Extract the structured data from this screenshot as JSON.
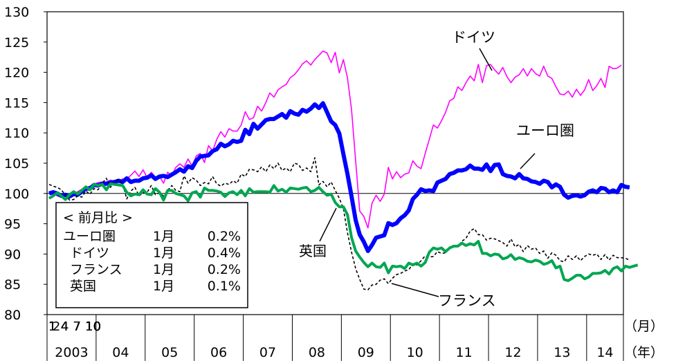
{
  "chart_data": {
    "type": "line",
    "title": "",
    "ylim": [
      80,
      130
    ],
    "yticks": [
      "80",
      "85",
      "90",
      "95",
      "100",
      "105",
      "110",
      "115",
      "120",
      "125",
      "130"
    ],
    "month_tick_labels": [
      "1",
      "4",
      "7",
      "10"
    ],
    "month_tick_labels_final": [
      "1",
      "2"
    ],
    "year_labels": [
      "2003",
      "04",
      "05",
      "06",
      "07",
      "08",
      "09",
      "10",
      "11",
      "12",
      "13",
      "14"
    ],
    "x_unit_month": "（月）",
    "x_unit_year": "（年）",
    "x_start": "2003-01",
    "x_end": "2014-02",
    "reference_line": 100,
    "colors": {
      "ドイツ": "#ff00ff",
      "ユーロ圏": "#0000ff",
      "フランス": "#000000",
      "英国": "#00a651"
    },
    "series": [
      {
        "name": "ドイツ",
        "style": "thin-solid",
        "values": [
          100.3,
          100.0,
          99.6,
          99.4,
          99.2,
          99.6,
          99.9,
          100.3,
          100.7,
          101.0,
          101.2,
          101.5,
          101.8,
          101.9,
          101.9,
          102.2,
          102.0,
          102.0,
          102.4,
          102.4,
          103.0,
          103.7,
          102.8,
          103.9,
          102.6,
          103.5,
          102.7,
          102.8,
          101.7,
          103.5,
          102.9,
          104.3,
          104.9,
          104.3,
          105.7,
          104.5,
          106.2,
          106.6,
          105.1,
          107.9,
          107.0,
          108.9,
          110.2,
          109.3,
          110.7,
          110.3,
          110.3,
          111.3,
          113.5,
          112.2,
          112.5,
          114.4,
          113.6,
          115.0,
          116.6,
          115.9,
          117.1,
          117.6,
          118.0,
          119.1,
          119.6,
          120.4,
          121.4,
          121.9,
          121.2,
          122.1,
          122.8,
          123.5,
          123.2,
          121.6,
          123.3,
          119.9,
          122.1,
          119.1,
          113.8,
          105.4,
          97.1,
          96.2,
          94.3,
          98.4,
          99.7,
          98.7,
          99.9,
          104.3,
          102.4,
          103.6,
          102.6,
          103.2,
          103.4,
          105.4,
          104.5,
          104.1,
          106.6,
          108.9,
          111.3,
          110.8,
          112.0,
          113.4,
          115.3,
          115.7,
          117.6,
          117.0,
          118.3,
          119.4,
          118.6,
          121.3,
          118.3,
          121.1,
          121.3,
          120.4,
          119.7,
          120.8,
          119.3,
          118.3,
          119.2,
          119.6,
          120.6,
          119.4,
          120.6,
          119.8,
          119.4,
          121.0,
          119.4,
          119.0,
          117.6,
          116.4,
          116.3,
          116.9,
          115.9,
          117.2,
          116.2,
          117.1,
          118.8,
          117.0,
          117.8,
          119.0,
          117.5,
          121.0,
          120.6,
          120.7,
          121.2
        ]
      },
      {
        "name": "ユーロ圏",
        "style": "thick-solid",
        "values": [
          100.0,
          100.2,
          100.0,
          99.6,
          99.8,
          99.5,
          99.9,
          99.8,
          100.3,
          100.8,
          100.8,
          101.4,
          101.3,
          101.6,
          101.6,
          101.8,
          101.9,
          102.1,
          101.9,
          102.5,
          101.9,
          102.1,
          102.1,
          102.5,
          102.6,
          103.0,
          102.4,
          102.8,
          102.9,
          102.7,
          103.1,
          103.5,
          104.0,
          103.6,
          104.5,
          104.2,
          105.4,
          106.1,
          106.2,
          106.3,
          107.0,
          107.3,
          108.2,
          107.8,
          108.1,
          108.7,
          108.5,
          108.7,
          110.5,
          109.8,
          111.5,
          110.7,
          111.4,
          112.1,
          112.3,
          112.3,
          112.7,
          113.1,
          112.5,
          113.6,
          113.2,
          113.0,
          113.8,
          113.5,
          114.0,
          114.7,
          114.1,
          114.9,
          113.4,
          111.9,
          111.3,
          109.9,
          106.5,
          103.2,
          99.5,
          95.6,
          93.2,
          92.0,
          90.5,
          91.5,
          92.7,
          92.9,
          93.1,
          95.1,
          94.8,
          95.1,
          95.9,
          96.4,
          97.2,
          99.1,
          99.8,
          100.7,
          100.4,
          100.5,
          100.4,
          101.8,
          102.1,
          102.4,
          103.2,
          103.4,
          103.8,
          103.8,
          104.0,
          104.6,
          104.1,
          104.1,
          103.9,
          104.8,
          103.7,
          104.7,
          104.8,
          103.2,
          102.9,
          102.8,
          102.5,
          103.2,
          102.5,
          102.4,
          102.0,
          101.9,
          101.6,
          102.1,
          101.9,
          101.0,
          101.5,
          101.1,
          99.8,
          99.3,
          99.6,
          99.7,
          99.5,
          99.7,
          100.3,
          100.5,
          100.2,
          100.9,
          100.8,
          100.2,
          100.5,
          100.2,
          101.4,
          101.1,
          101.0
        ]
      },
      {
        "name": "フランス",
        "style": "dashed",
        "values": [
          101.5,
          101.2,
          101.0,
          100.6,
          99.7,
          98.9,
          99.0,
          99.6,
          99.4,
          100.4,
          99.9,
          100.8,
          100.6,
          101.7,
          102.5,
          101.0,
          102.0,
          102.3,
          101.6,
          99.1,
          100.4,
          101.0,
          99.6,
          100.1,
          100.2,
          101.3,
          99.8,
          100.1,
          99.6,
          100.5,
          101.3,
          100.5,
          100.3,
          102.9,
          101.7,
          102.6,
          102.2,
          101.3,
          101.8,
          101.6,
          102.8,
          101.6,
          101.2,
          101.7,
          101.5,
          102.1,
          101.7,
          103.2,
          102.8,
          104.0,
          103.9,
          103.6,
          104.4,
          103.6,
          104.7,
          104.1,
          105.0,
          103.8,
          104.2,
          103.6,
          105.0,
          104.8,
          103.8,
          104.2,
          103.6,
          105.9,
          101.4,
          102.0,
          101.1,
          101.9,
          100.5,
          99.2,
          97.5,
          93.5,
          90.3,
          87.6,
          85.8,
          84.2,
          84.1,
          84.9,
          85.0,
          85.7,
          85.9,
          85.1,
          86.0,
          86.6,
          86.8,
          87.2,
          87.4,
          88.4,
          88.2,
          88.9,
          89.7,
          89.5,
          89.6,
          90.4,
          90.1,
          90.2,
          90.9,
          91.2,
          91.3,
          92.1,
          92.6,
          93.8,
          94.2,
          93.2,
          93.2,
          92.3,
          92.6,
          92.5,
          92.2,
          91.9,
          91.3,
          92.5,
          91.2,
          91.6,
          90.4,
          91.4,
          90.8,
          91.0,
          90.1,
          90.5,
          89.3,
          90.2,
          89.8,
          88.9,
          88.7,
          89.7,
          89.1,
          89.7,
          88.9,
          89.6,
          90.0,
          89.8,
          90.0,
          89.1,
          89.9,
          89.0,
          89.8,
          89.4,
          89.4,
          89.3,
          89.0
        ]
      },
      {
        "name": "英国",
        "style": "medium-solid",
        "values": [
          99.2,
          99.6,
          100.1,
          99.6,
          99.0,
          99.8,
          100.3,
          99.9,
          100.5,
          101.1,
          100.6,
          101.5,
          101.3,
          101.5,
          100.6,
          101.6,
          101.5,
          101.4,
          101.3,
          100.2,
          99.6,
          99.9,
          99.8,
          100.6,
          99.9,
          99.8,
          100.8,
          100.2,
          98.9,
          100.5,
          100.5,
          100.0,
          99.8,
          99.6,
          98.8,
          100.1,
          100.3,
          99.4,
          100.9,
          100.5,
          100.5,
          100.4,
          100.2,
          99.5,
          100.1,
          100.3,
          99.8,
          100.5,
          99.6,
          100.8,
          100.2,
          100.3,
          100.3,
          100.3,
          100.2,
          101.3,
          100.4,
          100.7,
          100.2,
          100.9,
          100.8,
          100.7,
          100.9,
          101.0,
          100.3,
          100.5,
          101.0,
          100.3,
          99.7,
          99.9,
          98.5,
          97.8,
          97.8,
          96.5,
          92.7,
          90.5,
          89.5,
          88.6,
          87.9,
          88.5,
          87.9,
          87.8,
          88.5,
          86.9,
          88.0,
          87.9,
          88.0,
          87.6,
          88.5,
          88.2,
          88.5,
          88.0,
          88.6,
          90.3,
          91.0,
          90.8,
          91.0,
          90.4,
          91.0,
          91.3,
          91.3,
          91.8,
          91.4,
          91.7,
          91.5,
          92.1,
          90.1,
          90.1,
          89.7,
          90.0,
          89.9,
          89.2,
          89.4,
          89.9,
          89.1,
          89.4,
          89.2,
          88.8,
          88.7,
          89.0,
          88.8,
          88.3,
          88.5,
          88.9,
          87.7,
          88.0,
          85.8,
          85.6,
          86.0,
          86.5,
          86.5,
          85.9,
          86.2,
          86.8,
          86.8,
          86.9,
          87.3,
          86.7,
          87.6,
          87.9,
          87.2,
          88.0,
          87.8,
          88.0,
          88.2
        ]
      }
    ],
    "annotations": {
      "doitsu": "ドイツ",
      "euro": "ユーロ圏",
      "uk": "英国",
      "france": "フランス"
    },
    "legend_box": {
      "title": "< 前月比 >",
      "rows": [
        {
          "name": "ユーロ圏",
          "month": "1月",
          "value": "0.2%"
        },
        {
          "name": "ドイツ",
          "month": "1月",
          "value": "0.4%"
        },
        {
          "name": "フランス",
          "month": "1月",
          "value": "0.2%"
        },
        {
          "name": "英国",
          "month": "1月",
          "value": "0.1%"
        }
      ]
    }
  }
}
